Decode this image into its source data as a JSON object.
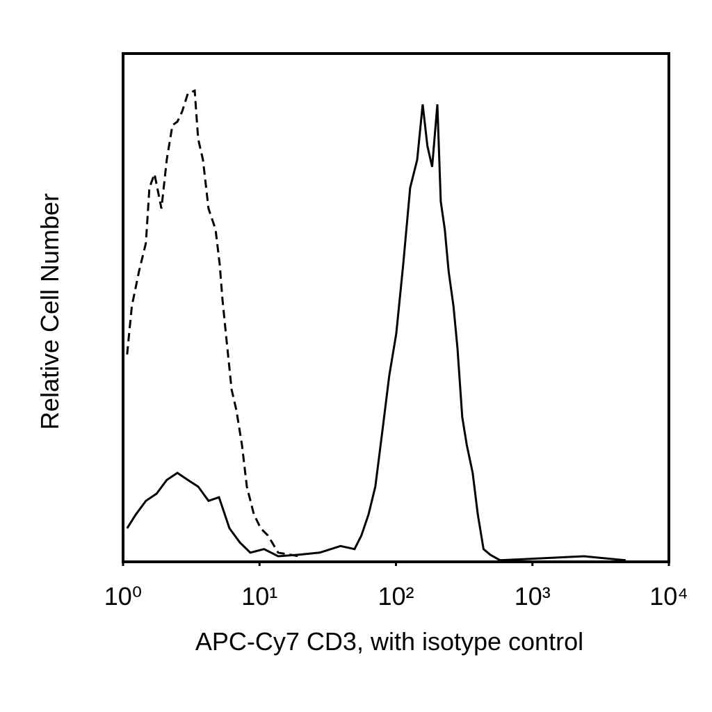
{
  "chart_data": {
    "type": "line",
    "xlabel": "APC-Cy7 CD3, with isotype control",
    "ylabel": "Relative Cell Number",
    "xscale": "log",
    "xlim": [
      1,
      10000
    ],
    "xticks": [
      {
        "value": 1,
        "label": "10⁰"
      },
      {
        "value": 10,
        "label": "10¹"
      },
      {
        "value": 100,
        "label": "10²"
      },
      {
        "value": 1000,
        "label": "10³"
      },
      {
        "value": 10000,
        "label": "10⁴"
      }
    ],
    "ylim": [
      0,
      100
    ],
    "series": [
      {
        "color": "#000000",
        "dashed": true,
        "x": [
          1.07,
          1.16,
          1.31,
          1.47,
          1.56,
          1.7,
          1.91,
          2.09,
          2.3,
          2.5,
          2.71,
          2.98,
          3.35,
          3.55,
          3.85,
          4.23,
          4.76,
          5.11,
          5.35,
          5.74,
          6.24,
          6.77,
          7.44,
          8.07,
          9.08,
          10.2,
          11.5,
          13.7,
          19.5
        ],
        "values": [
          40.8,
          50.3,
          57.2,
          62.7,
          73.6,
          76.3,
          69.5,
          79.1,
          85.9,
          86.6,
          88.6,
          92.1,
          92.7,
          83.2,
          79.1,
          69.5,
          65.4,
          58.5,
          51.7,
          43.5,
          33.9,
          29.8,
          23.0,
          14.8,
          9.4,
          6.6,
          5.2,
          1.8,
          1.1
        ]
      },
      {
        "color": "#000000",
        "dashed": false,
        "x": [
          1.07,
          1.24,
          1.47,
          1.76,
          2.09,
          2.5,
          2.98,
          3.55,
          4.23,
          5.05,
          6.02,
          7.18,
          8.56,
          10.8,
          13.7,
          19.5,
          27.6,
          39.2,
          49.7,
          55.8,
          62.9,
          70.6,
          79.4,
          89.4,
          100.5,
          113,
          127,
          143,
          157,
          170,
          184,
          201,
          213,
          228,
          243,
          264,
          282,
          306,
          330,
          365,
          398,
          438,
          490,
          579,
          2380,
          4820
        ],
        "values": [
          6.6,
          9.3,
          12.0,
          13.4,
          16.1,
          17.5,
          16.1,
          14.8,
          12.0,
          12.7,
          6.6,
          3.8,
          1.8,
          2.5,
          1.1,
          1.4,
          1.8,
          3.1,
          2.5,
          5.2,
          9.3,
          14.8,
          25.6,
          36.7,
          44.9,
          58.5,
          73.6,
          79.1,
          90.0,
          81.8,
          77.7,
          90.0,
          70.9,
          65.4,
          57.2,
          50.3,
          42.1,
          28.5,
          23.0,
          17.5,
          9.3,
          2.5,
          1.4,
          0.3,
          1.1,
          0.3
        ]
      }
    ]
  }
}
